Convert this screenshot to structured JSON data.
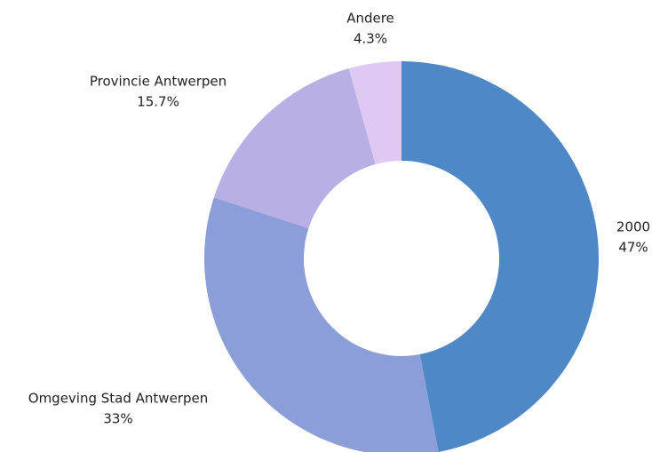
{
  "chart_data": {
    "type": "donut",
    "categories": [
      "2000",
      "Omgeving Stad Antwerpen",
      "Provincie Antwerpen",
      "Andere"
    ],
    "values": [
      47,
      33,
      15.7,
      4.3
    ],
    "value_labels": [
      "47%",
      "33%",
      "15.7%",
      "4.3%"
    ],
    "colors": [
      "#4f88c6",
      "#8c9ed8",
      "#b8b0e4",
      "#dfc9f2"
    ]
  }
}
